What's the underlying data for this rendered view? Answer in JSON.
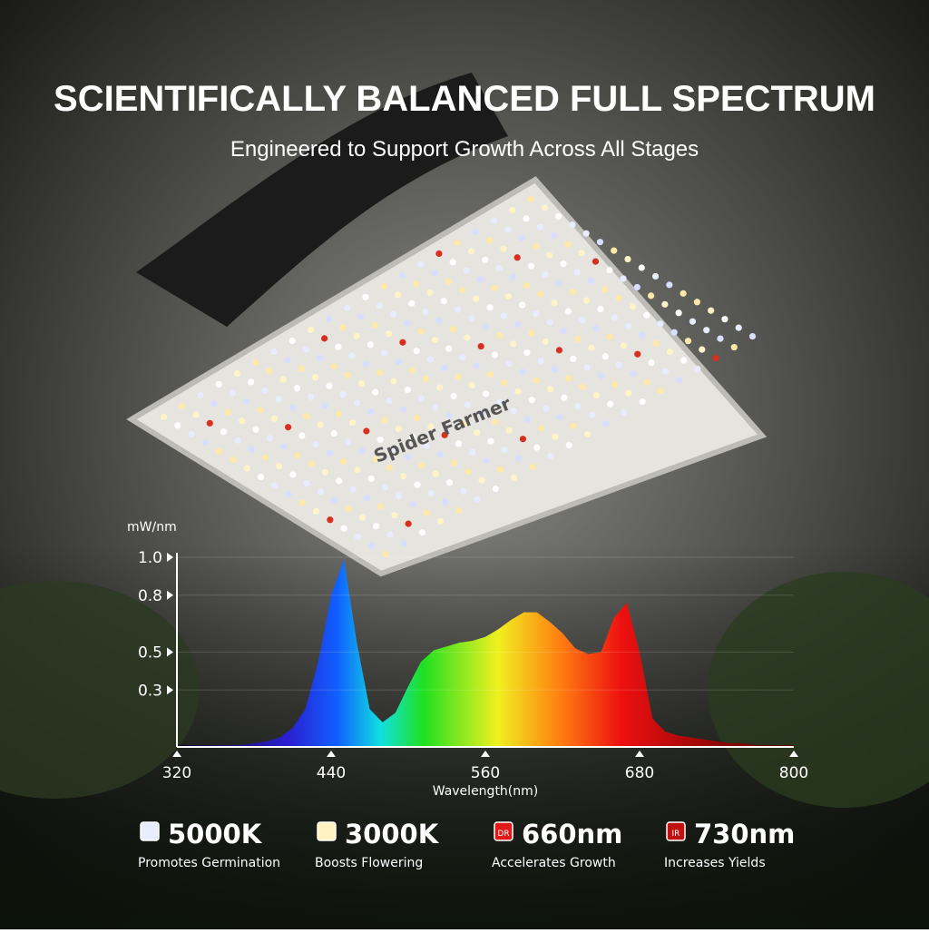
{
  "header": {
    "title": "SCIENTIFICALLY BALANCED FULL SPECTRUM",
    "subtitle": "Engineered to Support Growth Across All Stages"
  },
  "logo": "Spider Farmer",
  "chart_data": {
    "type": "area",
    "y_label": "mW/nm",
    "x_label": "Wavelength(nm)",
    "xlim": [
      320,
      800
    ],
    "xticks": [
      320,
      440,
      560,
      680,
      800
    ],
    "ylim": [
      0,
      1
    ],
    "yticks": [
      {
        "value": 1,
        "label": "1.0"
      },
      0.8,
      0.5,
      0.3
    ],
    "x": [
      320,
      330,
      340,
      350,
      360,
      370,
      380,
      390,
      400,
      410,
      420,
      430,
      440,
      450,
      460,
      470,
      480,
      490,
      500,
      510,
      520,
      530,
      540,
      550,
      560,
      570,
      580,
      590,
      600,
      610,
      620,
      630,
      640,
      650,
      660,
      670,
      680,
      690,
      700,
      710,
      720,
      730,
      740,
      750,
      760,
      770,
      780,
      790,
      800
    ],
    "values": [
      0.01,
      0.01,
      0.01,
      0.01,
      0.01,
      0.01,
      0.02,
      0.03,
      0.05,
      0.1,
      0.2,
      0.45,
      0.8,
      0.99,
      0.55,
      0.2,
      0.13,
      0.18,
      0.32,
      0.45,
      0.51,
      0.53,
      0.55,
      0.56,
      0.58,
      0.62,
      0.67,
      0.71,
      0.71,
      0.66,
      0.6,
      0.52,
      0.49,
      0.5,
      0.68,
      0.76,
      0.5,
      0.15,
      0.08,
      0.06,
      0.05,
      0.04,
      0.03,
      0.02,
      0.02,
      0.01,
      0.01,
      0.01,
      0.01
    ]
  },
  "features": [
    {
      "label": "5000K",
      "description": "Promotes Germination",
      "color": "#e8ecff"
    },
    {
      "label": "3000K",
      "description": "Boosts Flowering",
      "color": "#fff2c0"
    },
    {
      "label": "660nm",
      "description": "Accelerates Growth",
      "color": "#e01818",
      "badge": "DR"
    },
    {
      "label": "730nm",
      "description": "Increases Yields",
      "color": "#c01010",
      "badge": "IR"
    }
  ]
}
